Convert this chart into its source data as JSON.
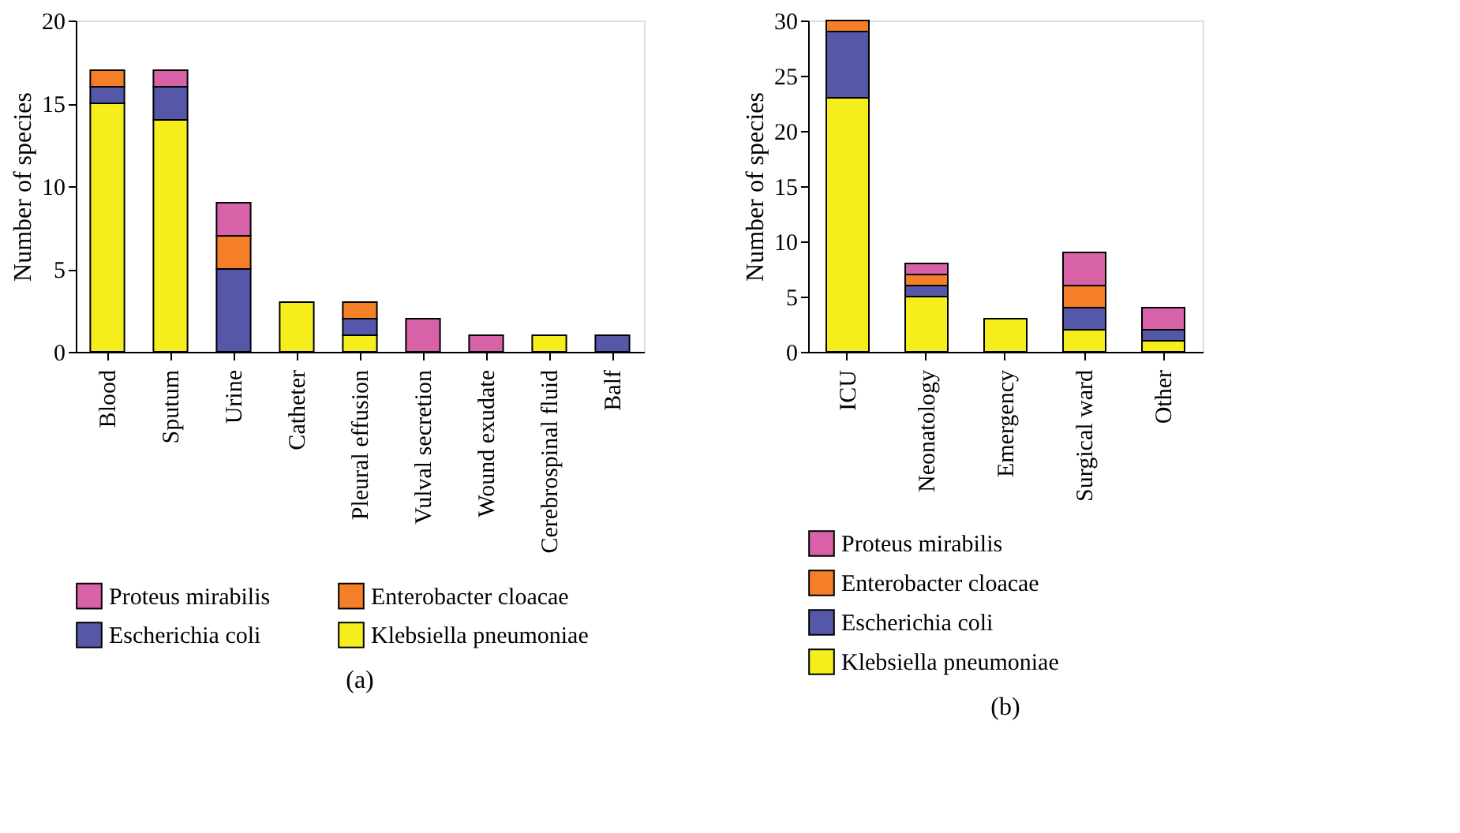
{
  "chart_data": [
    {
      "type": "bar",
      "stacked": true,
      "ylabel": "Number of species",
      "categories": [
        "Blood",
        "Sputum",
        "Urine",
        "Catheter",
        "Pleural effusion",
        "Vulval secretion",
        "Wound exudate",
        "Cerebrospinal fluid",
        "Balf"
      ],
      "ylim": [
        0,
        20
      ],
      "yticks": [
        0,
        5,
        10,
        15,
        20
      ],
      "legend": "bottom",
      "annotations": [
        "(a)"
      ],
      "series": [
        {
          "name": "Klebsiella pneumoniae",
          "color": "#f5ee1c",
          "values": [
            15,
            14,
            null,
            3,
            1,
            null,
            null,
            1,
            null
          ]
        },
        {
          "name": "Escherichia coli",
          "color": "#5558a8",
          "values": [
            1,
            2,
            5,
            null,
            1,
            null,
            null,
            null,
            1
          ]
        },
        {
          "name": "Enterobacter cloacae",
          "color": "#f57f29",
          "values": [
            1,
            null,
            2,
            null,
            1,
            null,
            null,
            null,
            null
          ]
        },
        {
          "name": "Proteus mirabilis",
          "color": "#d862a8",
          "values": [
            null,
            1,
            2,
            null,
            null,
            2,
            1,
            null,
            null
          ]
        }
      ]
    },
    {
      "type": "bar",
      "stacked": true,
      "ylabel": "Number of species",
      "categories": [
        "ICU",
        "Neonatology",
        "Emergency",
        "Surgical ward",
        "Other"
      ],
      "ylim": [
        0,
        30
      ],
      "yticks": [
        0,
        5,
        10,
        15,
        20,
        25,
        30
      ],
      "legend": "bottom",
      "annotations": [
        "(b)"
      ],
      "series": [
        {
          "name": "Klebsiella pneumoniae",
          "color": "#f5ee1c",
          "values": [
            23,
            5,
            3,
            2,
            1
          ]
        },
        {
          "name": "Escherichia coli",
          "color": "#5558a8",
          "values": [
            6,
            1,
            null,
            2,
            1
          ]
        },
        {
          "name": "Enterobacter cloacae",
          "color": "#f57f29",
          "values": [
            1,
            1,
            null,
            2,
            null
          ]
        },
        {
          "name": "Proteus mirabilis",
          "color": "#d862a8",
          "values": [
            null,
            1,
            null,
            3,
            2
          ]
        }
      ]
    }
  ]
}
